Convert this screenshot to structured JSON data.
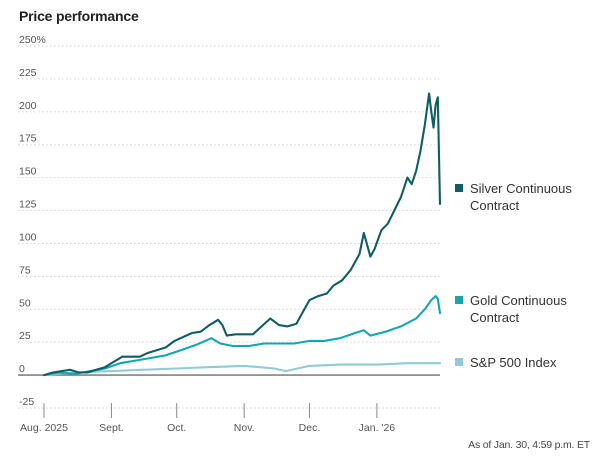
{
  "title": "Price performance",
  "source_note": "As of Jan. 30, 4:59 p.m. ET",
  "chart_data": {
    "type": "line",
    "title": "Price performance",
    "xlabel": "",
    "ylabel": "",
    "ylim": [
      -25,
      250
    ],
    "y_ticks": [
      {
        "value": 250,
        "label": "250%"
      },
      {
        "value": 225,
        "label": "225"
      },
      {
        "value": 200,
        "label": "200"
      },
      {
        "value": 175,
        "label": "175"
      },
      {
        "value": 150,
        "label": "150"
      },
      {
        "value": 125,
        "label": "125"
      },
      {
        "value": 100,
        "label": "100"
      },
      {
        "value": 75,
        "label": "75"
      },
      {
        "value": 50,
        "label": "50"
      },
      {
        "value": 25,
        "label": "25"
      },
      {
        "value": 0,
        "label": "0"
      },
      {
        "value": -25,
        "label": "-25"
      }
    ],
    "x_ticks": [
      {
        "date": "2025-08-01",
        "label": "Aug. 2025"
      },
      {
        "date": "2025-09-01",
        "label": "Sept."
      },
      {
        "date": "2025-10-01",
        "label": "Oct."
      },
      {
        "date": "2025-11-01",
        "label": "Nov."
      },
      {
        "date": "2025-12-01",
        "label": "Dec."
      },
      {
        "date": "2026-01-01",
        "label": "Jan. '26"
      }
    ],
    "xlim": [
      "2025-08-01",
      "2026-01-30"
    ],
    "grid": true,
    "legend_position": "right",
    "series": [
      {
        "name": "Silver Continuous Contract",
        "color": "#0e5e66",
        "points": [
          [
            "2025-08-01",
            0
          ],
          [
            "2025-08-05",
            2
          ],
          [
            "2025-08-09",
            3
          ],
          [
            "2025-08-13",
            4
          ],
          [
            "2025-08-17",
            2
          ],
          [
            "2025-08-21",
            2
          ],
          [
            "2025-08-25",
            4
          ],
          [
            "2025-08-29",
            6
          ],
          [
            "2025-09-02",
            10
          ],
          [
            "2025-09-06",
            14
          ],
          [
            "2025-09-10",
            14
          ],
          [
            "2025-09-14",
            14
          ],
          [
            "2025-09-18",
            17
          ],
          [
            "2025-09-22",
            19
          ],
          [
            "2025-09-26",
            21
          ],
          [
            "2025-09-30",
            26
          ],
          [
            "2025-10-04",
            29
          ],
          [
            "2025-10-08",
            32
          ],
          [
            "2025-10-12",
            33
          ],
          [
            "2025-10-16",
            38
          ],
          [
            "2025-10-20",
            42
          ],
          [
            "2025-10-22",
            38
          ],
          [
            "2025-10-24",
            30
          ],
          [
            "2025-10-28",
            31
          ],
          [
            "2025-11-01",
            31
          ],
          [
            "2025-11-05",
            31
          ],
          [
            "2025-11-09",
            37
          ],
          [
            "2025-11-13",
            43
          ],
          [
            "2025-11-17",
            38
          ],
          [
            "2025-11-21",
            37
          ],
          [
            "2025-11-25",
            39
          ],
          [
            "2025-11-28",
            48
          ],
          [
            "2025-12-01",
            57
          ],
          [
            "2025-12-05",
            60
          ],
          [
            "2025-12-09",
            62
          ],
          [
            "2025-12-12",
            68
          ],
          [
            "2025-12-16",
            72
          ],
          [
            "2025-12-20",
            80
          ],
          [
            "2025-12-24",
            92
          ],
          [
            "2025-12-26",
            108
          ],
          [
            "2025-12-29",
            90
          ],
          [
            "2025-12-31",
            96
          ],
          [
            "2026-01-03",
            110
          ],
          [
            "2026-01-06",
            115
          ],
          [
            "2026-01-09",
            125
          ],
          [
            "2026-01-12",
            135
          ],
          [
            "2026-01-15",
            150
          ],
          [
            "2026-01-17",
            145
          ],
          [
            "2026-01-19",
            155
          ],
          [
            "2026-01-21",
            170
          ],
          [
            "2026-01-23",
            190
          ],
          [
            "2026-01-25",
            214
          ],
          [
            "2026-01-26",
            200
          ],
          [
            "2026-01-27",
            188
          ],
          [
            "2026-01-28",
            205
          ],
          [
            "2026-01-29",
            211
          ],
          [
            "2026-01-30",
            130
          ]
        ]
      },
      {
        "name": "Gold Continuous Contract",
        "color": "#12a7b4",
        "points": [
          [
            "2025-08-01",
            0
          ],
          [
            "2025-08-08",
            2
          ],
          [
            "2025-08-15",
            1
          ],
          [
            "2025-08-22",
            3
          ],
          [
            "2025-08-29",
            5
          ],
          [
            "2025-09-05",
            9
          ],
          [
            "2025-09-12",
            11
          ],
          [
            "2025-09-19",
            13
          ],
          [
            "2025-09-26",
            15
          ],
          [
            "2025-10-03",
            19
          ],
          [
            "2025-10-10",
            23
          ],
          [
            "2025-10-17",
            28
          ],
          [
            "2025-10-21",
            24
          ],
          [
            "2025-10-27",
            22
          ],
          [
            "2025-11-03",
            22
          ],
          [
            "2025-11-10",
            24
          ],
          [
            "2025-11-17",
            24
          ],
          [
            "2025-11-24",
            24
          ],
          [
            "2025-12-01",
            26
          ],
          [
            "2025-12-08",
            26
          ],
          [
            "2025-12-15",
            28
          ],
          [
            "2025-12-22",
            32
          ],
          [
            "2025-12-26",
            34
          ],
          [
            "2025-12-29",
            30
          ],
          [
            "2026-01-05",
            33
          ],
          [
            "2026-01-12",
            37
          ],
          [
            "2026-01-19",
            43
          ],
          [
            "2026-01-23",
            50
          ],
          [
            "2026-01-26",
            57
          ],
          [
            "2026-01-28",
            60
          ],
          [
            "2026-01-29",
            58
          ],
          [
            "2026-01-30",
            47
          ]
        ]
      },
      {
        "name": "S&P 500 Index",
        "color": "#8ecbd6",
        "points": [
          [
            "2025-08-01",
            0
          ],
          [
            "2025-08-15",
            2
          ],
          [
            "2025-09-01",
            3
          ],
          [
            "2025-09-15",
            4
          ],
          [
            "2025-10-01",
            5
          ],
          [
            "2025-10-15",
            6
          ],
          [
            "2025-11-01",
            7
          ],
          [
            "2025-11-15",
            5
          ],
          [
            "2025-11-20",
            3
          ],
          [
            "2025-12-01",
            7
          ],
          [
            "2025-12-15",
            8
          ],
          [
            "2026-01-01",
            8
          ],
          [
            "2026-01-15",
            9
          ],
          [
            "2026-01-30",
            9
          ]
        ]
      }
    ]
  }
}
